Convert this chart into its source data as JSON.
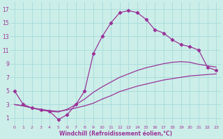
{
  "background_color": "#cceee8",
  "line_color": "#993399",
  "grid_color": "#aadddd",
  "xlabel": "Windchill (Refroidissement éolien,°C)",
  "xlabel_color": "#993399",
  "xlim": [
    -0.5,
    23.5
  ],
  "ylim": [
    0,
    18
  ],
  "xticks": [
    0,
    1,
    2,
    3,
    4,
    5,
    6,
    7,
    8,
    9,
    10,
    11,
    12,
    13,
    14,
    15,
    16,
    17,
    18,
    19,
    20,
    21,
    22,
    23
  ],
  "yticks": [
    1,
    3,
    5,
    7,
    9,
    11,
    13,
    15,
    17
  ],
  "series": [
    {
      "x": [
        0,
        1,
        2,
        3,
        4,
        5,
        6,
        7,
        8,
        9,
        10,
        11,
        12,
        13,
        14,
        15,
        16,
        17,
        18,
        19,
        20,
        21,
        22,
        23
      ],
      "y": [
        3.0,
        2.8,
        2.5,
        2.3,
        2.1,
        2.0,
        2.2,
        2.5,
        2.8,
        3.2,
        3.8,
        4.3,
        4.9,
        5.3,
        5.7,
        6.0,
        6.3,
        6.6,
        6.8,
        7.0,
        7.2,
        7.3,
        7.4,
        7.5
      ],
      "has_markers": false
    },
    {
      "x": [
        0,
        1,
        2,
        3,
        4,
        5,
        6,
        7,
        8,
        9,
        10,
        11,
        12,
        13,
        14,
        15,
        16,
        17,
        18,
        19,
        20,
        21,
        22,
        23
      ],
      "y": [
        3.0,
        2.8,
        2.5,
        2.2,
        2.0,
        1.9,
        2.3,
        3.0,
        3.8,
        4.8,
        5.6,
        6.3,
        7.0,
        7.5,
        8.0,
        8.4,
        8.7,
        9.0,
        9.2,
        9.3,
        9.2,
        8.9,
        8.7,
        8.5
      ],
      "has_markers": false
    },
    {
      "x": [
        0,
        1,
        2,
        3,
        4,
        5,
        6,
        7,
        8,
        9,
        10,
        11,
        12,
        13,
        14,
        15,
        16,
        17,
        18,
        19,
        20,
        21,
        22,
        23
      ],
      "y": [
        5.0,
        3.0,
        2.5,
        2.2,
        2.0,
        0.8,
        1.5,
        3.0,
        5.0,
        10.5,
        13.0,
        15.0,
        16.5,
        16.8,
        16.5,
        15.5,
        14.0,
        13.5,
        12.5,
        11.8,
        11.5,
        11.0,
        8.5,
        8.0
      ],
      "has_markers": true
    }
  ]
}
